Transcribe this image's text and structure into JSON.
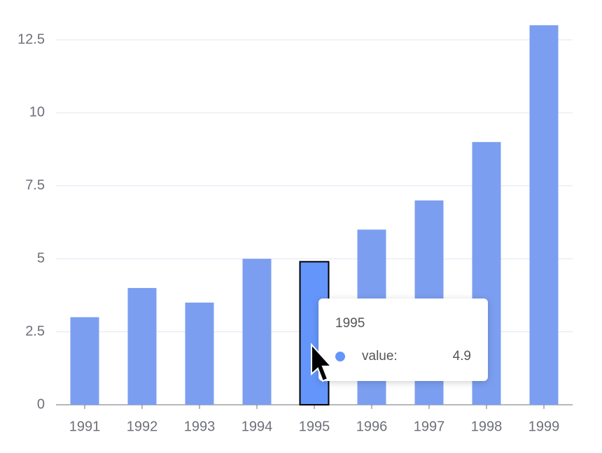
{
  "chart_data": {
    "type": "bar",
    "categories": [
      "1991",
      "1992",
      "1993",
      "1994",
      "1995",
      "1996",
      "1997",
      "1998",
      "1999"
    ],
    "values": [
      3,
      4,
      3.5,
      5,
      4.9,
      6,
      7,
      9,
      13
    ],
    "color": "#7b9ef0",
    "highlight_color": "#6495fa",
    "ylim": [
      0,
      13
    ],
    "yticks": [
      0,
      2.5,
      5,
      7.5,
      10,
      12.5
    ],
    "grid": true,
    "tooltip": {
      "category": "1995",
      "label": "value:"
    }
  }
}
